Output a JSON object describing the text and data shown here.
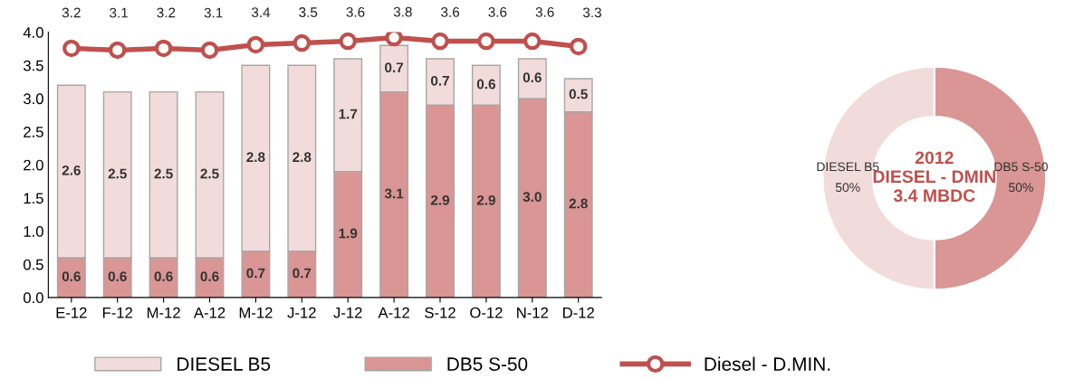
{
  "chart_data": [
    {
      "type": "bar",
      "stacked": true,
      "categories": [
        "E-12",
        "F-12",
        "M-12",
        "A-12",
        "M-12",
        "J-12",
        "J-12",
        "A-12",
        "S-12",
        "O-12",
        "N-12",
        "D-12"
      ],
      "series": [
        {
          "name": "DB5 S-50",
          "color": "#d99694",
          "values": [
            0.6,
            0.6,
            0.6,
            0.6,
            0.7,
            0.7,
            1.9,
            3.1,
            2.9,
            2.9,
            3.0,
            2.8
          ],
          "value_labels": [
            "0.6",
            "0.6",
            "0.6",
            "0.6",
            "0.7",
            "0.7",
            "1.9",
            "3.1",
            "2.9",
            "2.9",
            "3.0",
            "2.8"
          ]
        },
        {
          "name": "DIESEL B5",
          "color": "#f2dcdb",
          "values": [
            2.6,
            2.5,
            2.5,
            2.5,
            2.8,
            2.8,
            1.7,
            0.7,
            0.7,
            0.6,
            0.6,
            0.5
          ],
          "value_labels": [
            "2.6",
            "2.5",
            "2.5",
            "2.5",
            "2.8",
            "2.8",
            "1.7",
            "0.7",
            "0.7",
            "0.6",
            "0.6",
            "0.5"
          ]
        },
        {
          "name": "Diesel - D.MIN.",
          "type": "line",
          "axis": "y2",
          "color": "#c0504d",
          "marker": "circle",
          "values": [
            3.2,
            3.1,
            3.2,
            3.1,
            3.4,
            3.5,
            3.6,
            3.8,
            3.6,
            3.6,
            3.6,
            3.3
          ],
          "value_labels": [
            "3.2",
            "3.1",
            "3.2",
            "3.1",
            "3.4",
            "3.5",
            "3.6",
            "3.8",
            "3.6",
            "3.6",
            "3.6",
            "3.3"
          ]
        }
      ],
      "ylim": [
        0,
        4.0
      ],
      "yticks": [
        "0.0",
        "0.5",
        "1.0",
        "1.5",
        "2.0",
        "2.5",
        "3.0",
        "3.5",
        "4.0"
      ],
      "y2lim": [
        -10.7,
        4.1
      ],
      "grid": false,
      "legend": "bottom"
    },
    {
      "type": "donut",
      "categories": [
        "DB5 S-50",
        "DIESEL B5"
      ],
      "values": [
        50,
        50
      ],
      "colors": [
        "#d99694",
        "#f2dcdb"
      ],
      "value_labels": [
        "50%",
        "50%"
      ],
      "title": "2012\nDIESEL - DMIN\n3.4 MBDC"
    }
  ]
}
